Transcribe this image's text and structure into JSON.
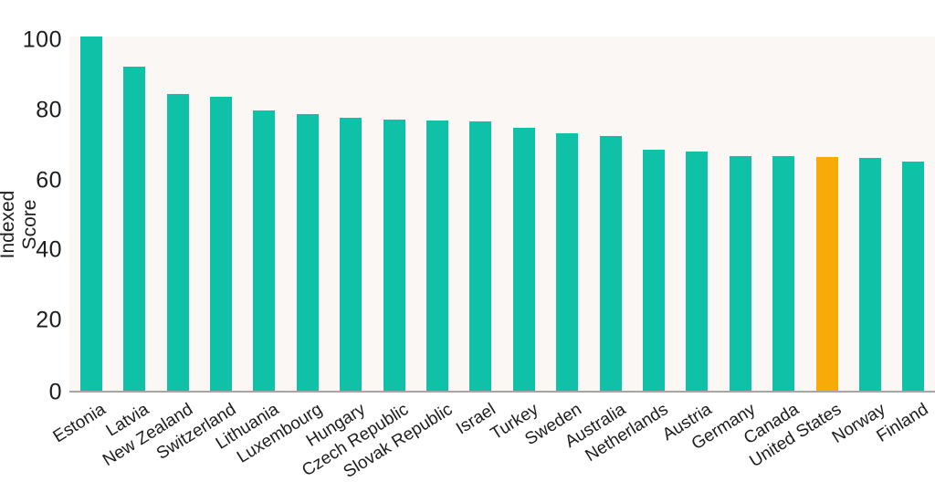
{
  "chart_data": {
    "type": "bar",
    "title": "",
    "xlabel": "",
    "ylabel": "Indexed Score",
    "categories": [
      "Estonia",
      "Latvia",
      "New Zealand",
      "Switzerland",
      "Lithuania",
      "Luxembourg",
      "Hungary",
      "Czech Republic",
      "Slovak Republic",
      "Israel",
      "Turkey",
      "Sweden",
      "Australia",
      "Netherlands",
      "Austria",
      "Germany",
      "Canada",
      "United States",
      "Norway",
      "Finland"
    ],
    "values": [
      101,
      92.5,
      84.6,
      83.8,
      79.8,
      78.9,
      77.8,
      77.4,
      77.0,
      76.8,
      75.1,
      73.3,
      72.6,
      68.7,
      68.1,
      67.0,
      66.8,
      66.7,
      66.4,
      65.3
    ],
    "yticks": [
      0,
      20,
      40,
      60,
      80,
      100
    ],
    "ylim": [
      0,
      101
    ],
    "grid": false,
    "legend": false,
    "bar_color": "#0FC1A7",
    "highlight_color": "#F8AB07",
    "highlight_category": "United States",
    "plot_background": "#FBF7F4",
    "axis_line_color": "#A8A5A2",
    "text_color": "#1d1d1d"
  }
}
